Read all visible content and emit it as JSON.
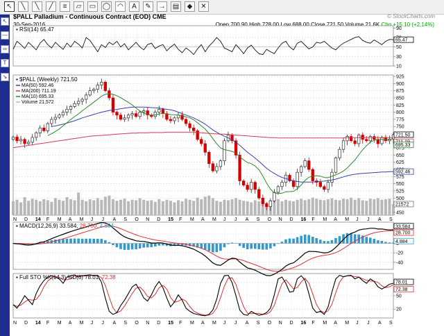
{
  "toolbar": {
    "tools": [
      "pointer",
      "line",
      "line-alt",
      "trend",
      "fib",
      "channel",
      "rect",
      "ellipse",
      "arc",
      "text",
      "annotation",
      "arrow",
      "callout",
      "marker",
      "delete"
    ]
  },
  "header": {
    "symbol_line": "$PALL Palladium - Continuous Contract (EOD) CME",
    "date": "30-Sep-2016",
    "open": "Open 700.90",
    "high": "High 728.00",
    "low": "Low 688.00",
    "close": "Close 721.50",
    "volume": "Volume 21.6K",
    "change": "Chg +15.10 (+2.14%)",
    "brand": "© StockCharts.com"
  },
  "colors": {
    "up": "#2a2a2a",
    "down": "#d40000",
    "ma50": "#3a3fa8",
    "ma200": "#d63a55",
    "ma10": "#2a8a2a",
    "volume": "#b8b8b8",
    "macd_hist": "#3399cc",
    "signal": "#e03030",
    "grid": "#d8d8d8",
    "sidebar": "#1e2e90"
  },
  "chart_data": [
    {
      "type": "line",
      "title": "RSI(14) 65.47",
      "ylim": [
        10,
        95
      ],
      "yticks": [
        "90",
        "70",
        "50",
        "30",
        "10"
      ],
      "current_label": "65.47",
      "values": [
        45,
        62,
        55,
        47,
        60,
        52,
        44,
        58,
        66,
        55,
        48,
        60,
        52,
        45,
        58,
        50,
        62,
        56,
        48,
        70,
        64,
        52,
        40,
        55,
        49,
        60,
        55,
        62,
        50,
        57,
        44,
        52,
        60,
        50,
        44,
        55,
        58,
        47,
        52,
        55,
        42,
        50,
        56,
        45,
        38,
        48,
        42,
        34,
        46,
        55,
        40,
        52,
        60,
        70,
        62,
        48,
        44,
        40,
        55,
        46,
        36,
        48,
        54,
        44,
        36,
        34,
        45,
        40,
        36,
        48,
        58,
        62,
        50,
        44,
        58,
        62,
        54,
        46,
        50,
        60,
        58,
        62,
        55,
        48,
        44,
        52,
        58,
        62,
        66,
        70,
        72,
        64,
        60,
        58,
        65,
        60,
        55,
        62,
        66,
        65.47
      ]
    },
    {
      "type": "bar",
      "title": "$PALL (Weekly) 721.50",
      "legend": [
        "MA(50) 592.46",
        "MA(200) 711.19",
        "MA(10) 695.33",
        "Volume 21,572"
      ],
      "ylim": [
        440,
        930
      ],
      "yticks": [
        "925",
        "900",
        "875",
        "850",
        "825",
        "800",
        "775",
        "750",
        "725",
        "700",
        "675",
        "650",
        "625",
        "600",
        "575",
        "550",
        "525",
        "500",
        "475",
        "450"
      ],
      "current_labels": [
        "721.50",
        "711.19",
        "695.33",
        "592.46",
        "21572"
      ],
      "x_ticks": [
        "N",
        "D",
        "14",
        "F",
        "M",
        "A",
        "M",
        "J",
        "J",
        "A",
        "S",
        "O",
        "N",
        "D",
        "15",
        "F",
        "M",
        "A",
        "M",
        "J",
        "J",
        "A",
        "S",
        "O",
        "N",
        "D",
        "16",
        "F",
        "M",
        "A",
        "M",
        "J",
        "J",
        "A",
        "S"
      ],
      "close": [
        713,
        700,
        705,
        690,
        695,
        712,
        728,
        745,
        735,
        760,
        775,
        782,
        790,
        800,
        810,
        820,
        830,
        838,
        845,
        860,
        875,
        880,
        895,
        905,
        875,
        850,
        800,
        790,
        775,
        780,
        790,
        795,
        785,
        800,
        805,
        790,
        785,
        800,
        810,
        795,
        775,
        770,
        780,
        790,
        775,
        760,
        745,
        735,
        705,
        690,
        660,
        620,
        595,
        610,
        630,
        700,
        720,
        700,
        650,
        560,
        545,
        530,
        555,
        530,
        500,
        480,
        470,
        490,
        520,
        540,
        555,
        580,
        560,
        540,
        590,
        610,
        630,
        600,
        560,
        555,
        540,
        530,
        555,
        590,
        640,
        670,
        700,
        715,
        700,
        690,
        720,
        705,
        700,
        715,
        705,
        690,
        712,
        700,
        706,
        721.5
      ],
      "ma50": [
        null,
        null,
        null,
        null,
        null,
        null,
        null,
        null,
        null,
        null,
        750,
        752,
        755,
        758,
        762,
        766,
        770,
        775,
        780,
        784,
        788,
        792,
        796,
        800,
        803,
        806,
        808,
        810,
        812,
        814,
        816,
        818,
        818,
        818,
        818,
        817,
        816,
        815,
        814,
        812,
        810,
        808,
        805,
        800,
        795,
        790,
        785,
        780,
        773,
        766,
        758,
        748,
        738,
        730,
        722,
        716,
        710,
        703,
        695,
        684,
        672,
        660,
        650,
        640,
        628,
        616,
        604,
        594,
        586,
        578,
        572,
        568,
        564,
        560,
        558,
        556,
        556,
        556,
        556,
        557,
        558,
        559,
        561,
        563,
        566,
        570,
        574,
        578,
        581,
        583,
        585,
        586,
        587,
        588,
        589,
        590,
        591,
        591,
        592,
        592.46
      ],
      "ma200": [
        676,
        678,
        680,
        682,
        684,
        686,
        688,
        690,
        692,
        694,
        696,
        698,
        700,
        702,
        704,
        706,
        708,
        710,
        712,
        714,
        716,
        717,
        718,
        719,
        720,
        721,
        722,
        723,
        724,
        725,
        726,
        727,
        727,
        728,
        728,
        728,
        729,
        729,
        729,
        729,
        730,
        730,
        730,
        730,
        730,
        730,
        730,
        730,
        729,
        728,
        727,
        726,
        725,
        724,
        723,
        723,
        722,
        721,
        720,
        719,
        718,
        717,
        716,
        715,
        714,
        713,
        712,
        711,
        711,
        710,
        710,
        710,
        710,
        710,
        710,
        710,
        710,
        710,
        710,
        710,
        710,
        710,
        710,
        710,
        710,
        710,
        710,
        711,
        711,
        711,
        711,
        711,
        711,
        711,
        711,
        711,
        711,
        711,
        711,
        711.19
      ],
      "volume_scale_max": 70000,
      "volume": [
        27000,
        30000,
        25000,
        35000,
        28000,
        32000,
        30000,
        27000,
        31000,
        29000,
        26000,
        33000,
        30000,
        28000,
        35000,
        31000,
        29000,
        44000,
        30000,
        27000,
        31000,
        29000,
        33000,
        30000,
        36000,
        38000,
        31000,
        28000,
        30000,
        32000,
        27000,
        30000,
        29000,
        33000,
        30000,
        28000,
        29000,
        26000,
        31000,
        27000,
        30000,
        28000,
        25000,
        29000,
        27000,
        32000,
        30000,
        28000,
        34000,
        31000,
        36000,
        38000,
        33000,
        28000,
        26000,
        30000,
        29000,
        31000,
        33000,
        30000,
        28000,
        27000,
        25000,
        29000,
        27000,
        26000,
        24000,
        29000,
        28000,
        31000,
        27000,
        30000,
        28000,
        27000,
        30000,
        32000,
        29000,
        31000,
        34000,
        32000,
        30000,
        29000,
        31000,
        33000,
        30000,
        29000,
        32000,
        31000,
        34000,
        30000,
        33000,
        29000,
        28000,
        32000,
        31000,
        33000,
        30000,
        31000,
        32000,
        21572
      ]
    },
    {
      "type": "line",
      "title": "MACD(12,26,9) 33.584, 28.700, 4.884",
      "title_parts": [
        "MACD(12,26,9) 33.584, ",
        "28.700",
        ", 4.884"
      ],
      "ylim": [
        -55,
        45
      ],
      "yticks": [
        "20",
        "0",
        "-20",
        "-40"
      ],
      "current_labels": [
        "33.584",
        "28.700",
        "4.884"
      ]
    },
    {
      "type": "line",
      "title": "Full STO %K(14,3) %D(3) 78.01, 72.38",
      "title_parts": [
        "Full STO %K(14,3) %D(3) 78.01, ",
        "72.38"
      ],
      "ylim": [
        0,
        100
      ],
      "yticks": [
        "80",
        "50",
        "20"
      ],
      "current_labels": [
        "78.01",
        "72.38"
      ],
      "k": [
        30,
        22,
        35,
        50,
        40,
        30,
        55,
        72,
        84,
        92,
        95,
        92,
        88,
        78,
        92,
        95,
        97,
        92,
        95,
        96,
        97,
        95,
        96,
        80,
        45,
        15,
        8,
        12,
        28,
        40,
        55,
        70,
        76,
        62,
        45,
        38,
        52,
        70,
        82,
        68,
        45,
        25,
        36,
        52,
        40,
        22,
        15,
        10,
        8,
        6,
        5,
        8,
        18,
        42,
        78,
        95,
        96,
        80,
        50,
        18,
        8,
        6,
        15,
        10,
        6,
        8,
        12,
        22,
        52,
        88,
        92,
        78,
        58,
        60,
        88,
        95,
        85,
        55,
        22,
        12,
        15,
        8,
        25,
        58,
        88,
        96,
        93,
        95,
        96,
        88,
        92,
        84,
        78,
        88,
        82,
        70,
        65,
        70,
        76,
        78.01
      ]
    }
  ]
}
